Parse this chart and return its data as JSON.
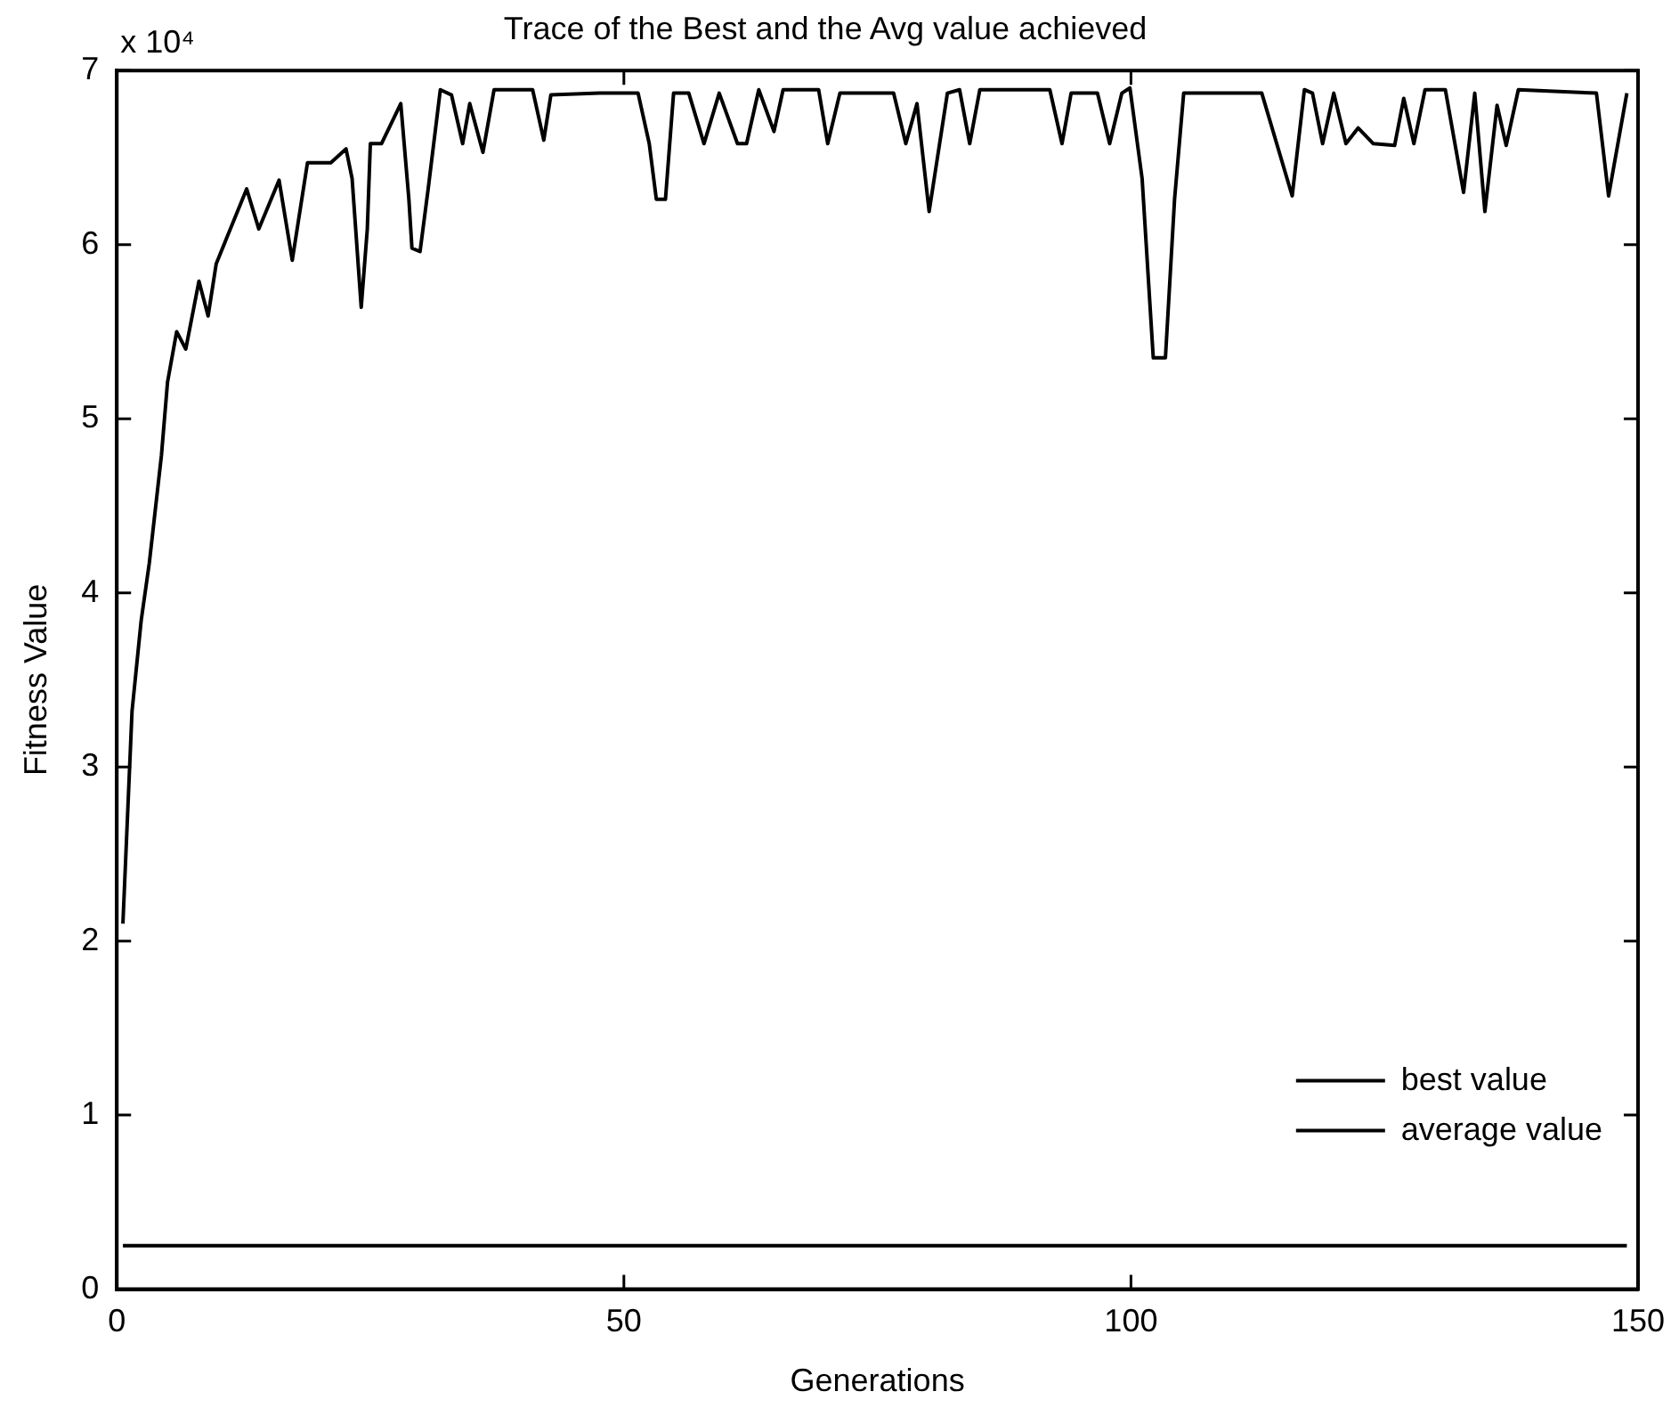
{
  "chart_data": {
    "type": "line",
    "title": "Trace of the Best and the Avg value achieved",
    "xlabel": "Generations",
    "ylabel": "Fitness Value",
    "annotations": [
      "x 10⁴"
    ],
    "xlim": [
      0,
      150
    ],
    "xticks": [
      0,
      50,
      100,
      150
    ],
    "ylim": [
      0,
      7
    ],
    "yticks": [
      0,
      1,
      2,
      3,
      4,
      5,
      6,
      7
    ],
    "grid": false,
    "legend": "bottom right",
    "marker": "none",
    "line_style": "solid",
    "series": [
      {
        "name": "best value",
        "color": "#000000",
        "x": [
          0.6,
          1.5,
          2.4,
          3.2,
          4.4,
          5.0,
          5.9,
          6.8,
          8.1,
          9.0,
          9.8,
          12.8,
          14.0,
          16.0,
          17.3,
          18.8,
          21.1,
          22.6,
          23.2,
          24.1,
          24.7,
          25.0,
          26.1,
          28.0,
          28.8,
          29.1,
          29.9,
          30.7,
          31.9,
          33.0,
          34.1,
          34.8,
          36.1,
          37.2,
          41.0,
          42.1,
          42.8,
          47.6,
          51.4,
          52.5,
          53.2,
          54.1,
          54.9,
          56.4,
          57.9,
          59.4,
          61.2,
          62.1,
          63.3,
          64.8,
          65.7,
          69.2,
          70.1,
          71.3,
          76.6,
          77.8,
          78.9,
          80.1,
          81.9,
          83.1,
          84.1,
          85.1,
          92.0,
          93.2,
          94.1,
          96.7,
          97.9,
          99.1,
          99.9,
          101.1,
          102.2,
          103.4,
          104.3,
          105.2,
          112.9,
          115.9,
          117.1,
          117.9,
          118.9,
          120.0,
          121.2,
          122.4,
          123.9,
          126.0,
          126.9,
          127.9,
          129.0,
          131.0,
          132.8,
          133.9,
          134.9,
          136.1,
          137.0,
          138.2,
          145.9,
          147.1,
          148.9
        ],
        "values": [
          2.1,
          3.32,
          3.84,
          4.17,
          4.79,
          5.21,
          5.5,
          5.4,
          5.79,
          5.59,
          5.89,
          6.32,
          6.09,
          6.37,
          5.91,
          6.47,
          6.47,
          6.55,
          6.38,
          5.64,
          6.09,
          6.58,
          6.58,
          6.81,
          6.26,
          5.98,
          5.96,
          6.32,
          6.89,
          6.86,
          6.58,
          6.81,
          6.53,
          6.89,
          6.89,
          6.6,
          6.86,
          6.87,
          6.87,
          6.58,
          6.26,
          6.26,
          6.87,
          6.87,
          6.58,
          6.87,
          6.58,
          6.58,
          6.89,
          6.65,
          6.89,
          6.89,
          6.58,
          6.87,
          6.87,
          6.58,
          6.81,
          6.19,
          6.87,
          6.89,
          6.58,
          6.89,
          6.89,
          6.58,
          6.87,
          6.87,
          6.58,
          6.87,
          6.9,
          6.38,
          5.35,
          5.35,
          6.26,
          6.87,
          6.87,
          6.28,
          6.89,
          6.87,
          6.58,
          6.87,
          6.58,
          6.67,
          6.58,
          6.57,
          6.84,
          6.58,
          6.89,
          6.89,
          6.3,
          6.87,
          6.19,
          6.8,
          6.57,
          6.89,
          6.87,
          6.28,
          6.87
        ]
      },
      {
        "name": "average value",
        "color": "#000000",
        "x": [
          0.6,
          148.9
        ],
        "values": [
          0.25,
          0.25
        ]
      }
    ]
  }
}
